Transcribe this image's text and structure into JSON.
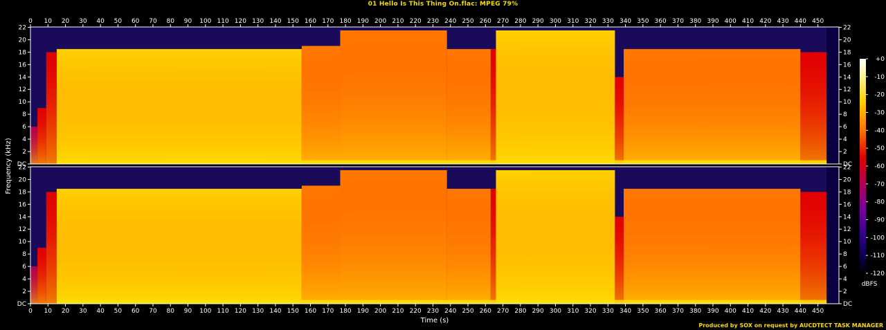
{
  "chart_data": {
    "type": "heatmap",
    "title": "01 Hello Is This Thing On.flac: MPEG 79%",
    "xlabel": "Time (s)",
    "ylabel": "Frequency (kHz)",
    "colorbar_label": "dBFS",
    "credit": "Produced by SOX on request by AUCDTECT TASK MANAGER",
    "xlim": [
      0,
      462
    ],
    "ylim": [
      0,
      22.05
    ],
    "x_ticks": [
      "0",
      "10",
      "20",
      "30",
      "40",
      "50",
      "60",
      "70",
      "80",
      "90",
      "100",
      "110",
      "120",
      "130",
      "140",
      "150",
      "160",
      "170",
      "180",
      "190",
      "200",
      "210",
      "220",
      "230",
      "240",
      "250",
      "260",
      "270",
      "280",
      "290",
      "300",
      "310",
      "320",
      "330",
      "340",
      "350",
      "360",
      "370",
      "380",
      "390",
      "400",
      "410",
      "420",
      "430",
      "440",
      "450"
    ],
    "x_tick_values": [
      0,
      10,
      20,
      30,
      40,
      50,
      60,
      70,
      80,
      90,
      100,
      110,
      120,
      130,
      140,
      150,
      160,
      170,
      180,
      190,
      200,
      210,
      220,
      230,
      240,
      250,
      260,
      270,
      280,
      290,
      300,
      310,
      320,
      330,
      340,
      350,
      360,
      370,
      380,
      390,
      400,
      410,
      420,
      430,
      440,
      450
    ],
    "y_ticks": [
      "DC",
      "2",
      "4",
      "6",
      "8",
      "10",
      "12",
      "14",
      "16",
      "18",
      "20",
      "22"
    ],
    "y_tick_values": [
      0,
      2,
      4,
      6,
      8,
      10,
      12,
      14,
      16,
      18,
      20,
      22
    ],
    "colorbar_ticks": [
      "+0",
      "-10",
      "-20",
      "-30",
      "-40",
      "-50",
      "-60",
      "-70",
      "-80",
      "-90",
      "-100",
      "-110",
      "-120"
    ],
    "colorbar_values": [
      0,
      -10,
      -20,
      -30,
      -40,
      -50,
      -60,
      -70,
      -80,
      -90,
      -100,
      -110,
      -120
    ],
    "channels": [
      "left",
      "right"
    ],
    "segments": [
      {
        "start": 0,
        "end": 4,
        "cutoff_khz": 6,
        "level_db": -75
      },
      {
        "start": 4,
        "end": 9,
        "cutoff_khz": 9,
        "level_db": -60
      },
      {
        "start": 9,
        "end": 15,
        "cutoff_khz": 18,
        "level_db": -65
      },
      {
        "start": 15,
        "end": 155,
        "cutoff_khz": 18.5,
        "level_db": -40
      },
      {
        "start": 155,
        "end": 177,
        "cutoff_khz": 19,
        "level_db": -55
      },
      {
        "start": 177,
        "end": 238,
        "cutoff_khz": 21.5,
        "level_db": -45
      },
      {
        "start": 238,
        "end": 263,
        "cutoff_khz": 18.5,
        "level_db": -42
      },
      {
        "start": 263,
        "end": 266,
        "cutoff_khz": 18.5,
        "level_db": -60
      },
      {
        "start": 266,
        "end": 334,
        "cutoff_khz": 21.5,
        "level_db": -40
      },
      {
        "start": 334,
        "end": 339,
        "cutoff_khz": 14,
        "level_db": -65
      },
      {
        "start": 339,
        "end": 440,
        "cutoff_khz": 18.5,
        "level_db": -50
      },
      {
        "start": 440,
        "end": 455,
        "cutoff_khz": 18,
        "level_db": -60
      }
    ]
  }
}
